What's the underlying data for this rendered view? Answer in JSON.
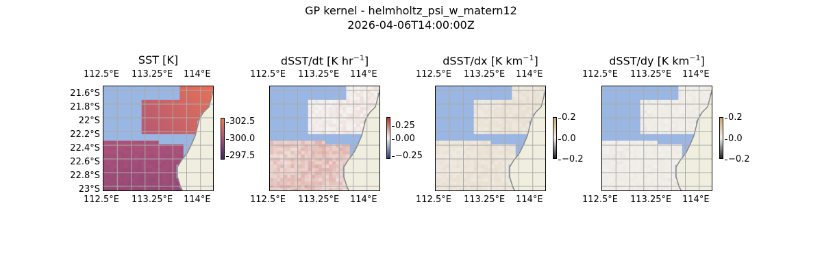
{
  "figure": {
    "title_line1": "GP kernel - helmholtz_psi_w_matern12",
    "title_line2": "2026-04-06T14:00:00Z"
  },
  "colors": {
    "ocean_mask": "#9ab6e3",
    "land": "#f0efdf",
    "coast": "#888888",
    "grid": "#aaaaaa",
    "sst_low": "#3b2a5e",
    "sst_mid": "#a8507a",
    "sst_high": "#f57a4e",
    "div_low": "#2a3d7a",
    "div_mid": "#f5f3f0",
    "div_high": "#b83020",
    "grad_low": "#1c1c24",
    "grad_mid": "#f2f0ec",
    "grad_high": "#c8a46e"
  },
  "chart_data": [
    {
      "type": "heatmap",
      "title": "SST [K]",
      "x_tick_labels": [
        "112.5°E",
        "113.25°E",
        "114°E"
      ],
      "y_tick_labels": [
        "21.6°S",
        "21.8°S",
        "22°S",
        "22.2°S",
        "22.4°S",
        "22.6°S",
        "22.8°S",
        "23°S"
      ],
      "x_range": [
        112.5,
        114.25
      ],
      "y_range": [
        -23.05,
        -21.5
      ],
      "colorbar": {
        "ticks": [
          "302.5",
          "300.0",
          "297.5"
        ],
        "range": [
          297.0,
          303.5
        ],
        "cmap": "sst"
      },
      "fields": [
        {
          "region": "north",
          "value_range": [
            301.0,
            302.8
          ]
        },
        {
          "region": "south",
          "value_range": [
            299.5,
            301.0
          ]
        }
      ]
    },
    {
      "type": "heatmap",
      "title": "dSST/dt [K hr",
      "title_exp": "−1",
      "title_end": "]",
      "x_tick_labels": [
        "112.5°E",
        "113.25°E",
        "114°E"
      ],
      "y_tick_labels": [],
      "x_range": [
        112.5,
        114.25
      ],
      "y_range": [
        -23.05,
        -21.5
      ],
      "colorbar": {
        "ticks": [
          "0.25",
          "0.00",
          "−0.25"
        ],
        "range": [
          -0.4,
          0.4
        ],
        "cmap": "div"
      },
      "fields": [
        {
          "region": "north",
          "value_range": [
            -0.05,
            0.05
          ]
        },
        {
          "region": "south",
          "value_range": [
            0.0,
            0.15
          ]
        }
      ]
    },
    {
      "type": "heatmap",
      "title": "dSST/dx [K km",
      "title_exp": "−1",
      "title_end": "]",
      "x_tick_labels": [
        "112.5°E",
        "113.25°E",
        "114°E"
      ],
      "y_tick_labels": [],
      "x_range": [
        112.5,
        114.25
      ],
      "y_range": [
        -23.05,
        -21.5
      ],
      "colorbar": {
        "ticks": [
          "0.2",
          "0.0",
          "−0.2"
        ],
        "range": [
          -0.2,
          0.2
        ],
        "cmap": "grad"
      },
      "fields": [
        {
          "region": "north",
          "value_range": [
            0.0,
            0.05
          ]
        },
        {
          "region": "south",
          "value_range": [
            0.0,
            0.05
          ]
        }
      ]
    },
    {
      "type": "heatmap",
      "title": "dSST/dy [K km",
      "title_exp": "−1",
      "title_end": "]",
      "x_tick_labels": [
        "112.5°E",
        "113.25°E",
        "114°E"
      ],
      "y_tick_labels": [],
      "x_range": [
        112.5,
        114.25
      ],
      "y_range": [
        -23.05,
        -21.5
      ],
      "colorbar": {
        "ticks": [
          "0.2",
          "0.0",
          "−0.2"
        ],
        "range": [
          -0.2,
          0.2
        ],
        "cmap": "grad"
      },
      "fields": [
        {
          "region": "north",
          "value_range": [
            -0.02,
            0.02
          ]
        },
        {
          "region": "south",
          "value_range": [
            -0.02,
            0.02
          ]
        }
      ]
    }
  ]
}
